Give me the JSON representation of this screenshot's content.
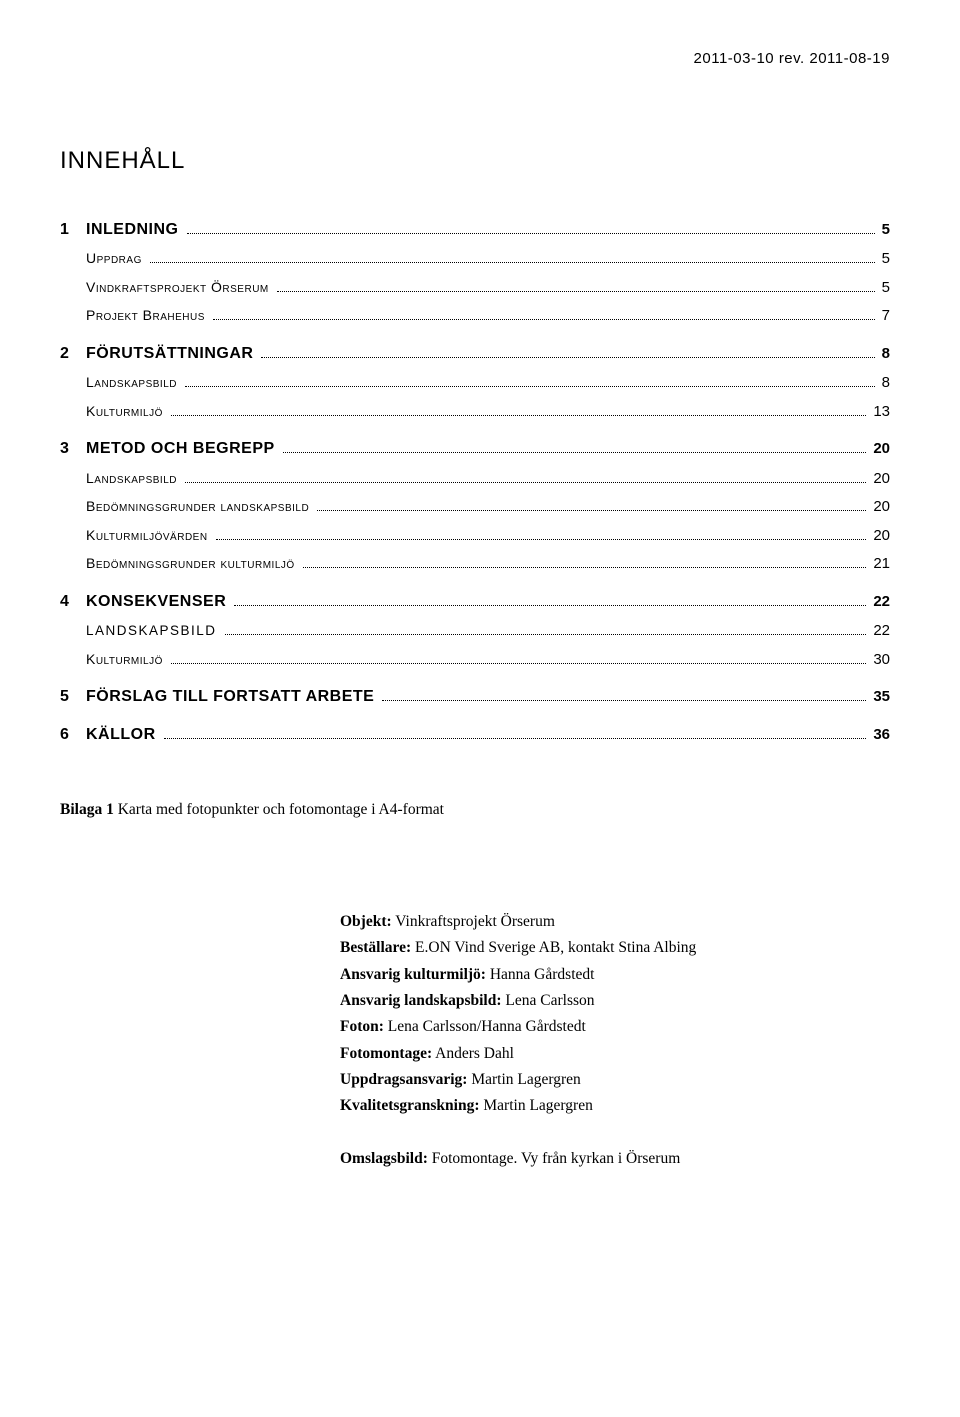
{
  "header_date": "2011-03-10 rev. 2011-08-19",
  "doc_title": "INNEHÅLL",
  "toc": [
    {
      "num": "1",
      "label": "INLEDNING",
      "page": "5",
      "level": 1,
      "gap": false
    },
    {
      "num": "",
      "label": "Uppdrag",
      "page": "5",
      "level": 2,
      "gap": false
    },
    {
      "num": "",
      "label": "Vindkraftsprojekt Örserum",
      "page": "5",
      "level": 2,
      "gap": false
    },
    {
      "num": "",
      "label": "Projekt Brahehus",
      "page": "7",
      "level": 2,
      "gap": false
    },
    {
      "num": "2",
      "label": "FÖRUTSÄTTNINGAR",
      "page": "8",
      "level": 1,
      "gap": true
    },
    {
      "num": "",
      "label": "Landskapsbild",
      "page": "8",
      "level": 2,
      "gap": false
    },
    {
      "num": "",
      "label": "Kulturmiljö",
      "page": "13",
      "level": 2,
      "gap": false
    },
    {
      "num": "3",
      "label": "METOD OCH BEGREPP",
      "page": "20",
      "level": 1,
      "gap": true
    },
    {
      "num": "",
      "label": "Landskapsbild",
      "page": "20",
      "level": 2,
      "gap": false
    },
    {
      "num": "",
      "label": "Bedömningsgrunder landskapsbild",
      "page": "20",
      "level": 2,
      "gap": false
    },
    {
      "num": "",
      "label": "Kulturmiljövärden",
      "page": "20",
      "level": 2,
      "gap": false
    },
    {
      "num": "",
      "label": "Bedömningsgrunder kulturmiljö",
      "page": "21",
      "level": 2,
      "gap": false
    },
    {
      "num": "4",
      "label": "KONSEKVENSER",
      "page": "22",
      "level": 1,
      "gap": true
    },
    {
      "num": "",
      "label": "LANDSKAPSBILD",
      "page": "22",
      "level": 2,
      "gap": false,
      "sc": true
    },
    {
      "num": "",
      "label": "Kulturmiljö",
      "page": "30",
      "level": 2,
      "gap": false
    },
    {
      "num": "5",
      "label": "FÖRSLAG TILL FORTSATT ARBETE",
      "page": "35",
      "level": 1,
      "gap": true
    },
    {
      "num": "6",
      "label": "KÄLLOR",
      "page": "36",
      "level": 1,
      "gap": true
    }
  ],
  "bilaga": {
    "prefix": "Bilaga 1",
    "rest": " Karta med fotopunkter och fotomontage i A4-format"
  },
  "meta": {
    "objekt_label": "Objekt:",
    "objekt_value": " Vinkraftsprojekt Örserum",
    "bestallare_label": "Beställare:",
    "bestallare_value": " E.ON Vind Sverige AB, kontakt Stina Albing",
    "ansvarig_kultur_label": "Ansvarig kulturmiljö:",
    "ansvarig_kultur_value": " Hanna Gårdstedt",
    "ansvarig_land_label": "Ansvarig landskapsbild:",
    "ansvarig_land_value": " Lena Carlsson",
    "foton_label": "Foton:",
    "foton_value": " Lena Carlsson/Hanna Gårdstedt",
    "fotomontage_label": "Fotomontage:",
    "fotomontage_value": " Anders Dahl",
    "uppdrag_label": "Uppdragsansvarig:",
    "uppdrag_value": " Martin Lagergren",
    "kvalitet_label": "Kvalitetsgranskning:",
    "kvalitet_value": " Martin Lagergren",
    "omslag_label": "Omslagsbild:",
    "omslag_value": " Fotomontage. Vy från kyrkan i Örserum"
  },
  "colors": {
    "text": "#000000",
    "background": "#ffffff",
    "leader": "#000000"
  }
}
